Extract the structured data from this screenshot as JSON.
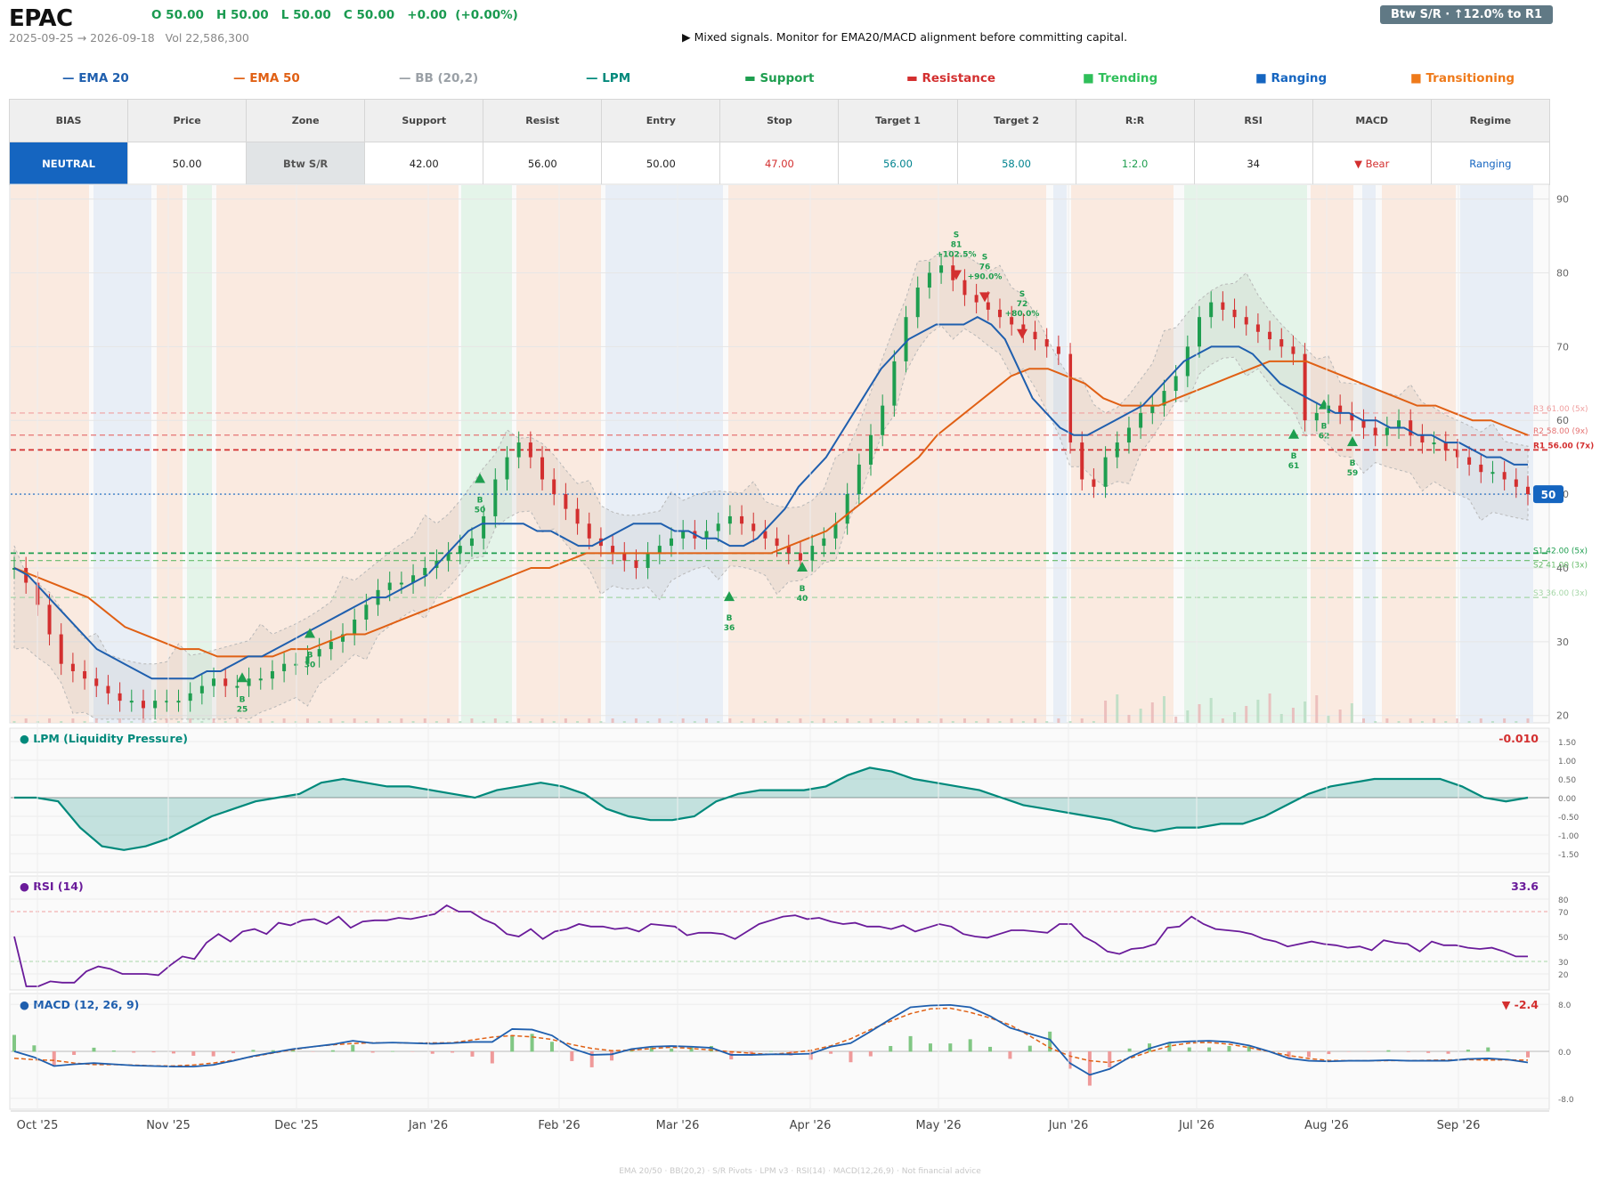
{
  "header": {
    "ticker": "EPAC",
    "ohlc": "O 50.00   H 50.00   L 50.00   C 50.00   +0.00  (+0.00%)",
    "range": "2025-09-25 → 2026-09-18   Vol 22,586,300",
    "signal": "▶  Mixed signals. Monitor for EMA20/MACD alignment before committing capital.",
    "badge": "Btw S/R  ·  ↑12.0% to R1"
  },
  "legend": [
    {
      "label": "— EMA 20",
      "color": "#1f5fae"
    },
    {
      "label": "— EMA 50",
      "color": "#e06014"
    },
    {
      "label": "— BB (20,2)",
      "color": "#9aa0a6"
    },
    {
      "label": "— LPM",
      "color": "#00897b"
    },
    {
      "label": "▬  Support",
      "color": "#1e9e4f"
    },
    {
      "label": "▬  Resistance",
      "color": "#d32f2f"
    },
    {
      "label": "■  Trending",
      "color": "#2fbf5a"
    },
    {
      "label": "■  Ranging",
      "color": "#1565c0"
    },
    {
      "label": "■  Transitioning",
      "color": "#ef7a1a"
    }
  ],
  "table": {
    "headers": [
      "BIAS",
      "Price",
      "Zone",
      "Support",
      "Resist",
      "Entry",
      "Stop",
      "Target 1",
      "Target 2",
      "R:R",
      "RSI",
      "MACD",
      "Regime"
    ],
    "values": [
      "NEUTRAL",
      "50.00",
      "Btw S/R",
      "42.00",
      "56.00",
      "50.00",
      "47.00",
      "56.00",
      "58.00",
      "1:2.0",
      "34",
      "▼ Bear",
      "Ranging"
    ],
    "colors": [
      "#ffffff",
      "#222222",
      "#555555",
      "#222222",
      "#222222",
      "#222222",
      "#d32f2f",
      "#00838f",
      "#00838f",
      "#1e9e4f",
      "#222222",
      "#d32f2f",
      "#1565c0"
    ]
  },
  "footer": "EMA 20/50  ·  BB(20,2)  ·  S/R Pivots  ·  LPM v3  ·  RSI(14)  ·  MACD(12,26,9)  ·  Not financial advice",
  "chart_data": {
    "type": "candlestick",
    "x_range": [
      "2025-09-25",
      "2026-09-18"
    ],
    "x_tick_labels": [
      "Oct '25",
      "Nov '25",
      "Dec '25",
      "Jan '26",
      "Feb '26",
      "Mar '26",
      "Apr '26",
      "May '26",
      "Jun '26",
      "Jul '26",
      "Aug '26",
      "Sep '26"
    ],
    "price_axis": {
      "ylim": [
        19,
        92
      ],
      "ticks": [
        20,
        30,
        40,
        50,
        60,
        70,
        80,
        90
      ]
    },
    "close": [
      40,
      38,
      35,
      31,
      27,
      26,
      25,
      24,
      23,
      22,
      22,
      21,
      22,
      22,
      22,
      23,
      24,
      25,
      24,
      24,
      25,
      25,
      26,
      27,
      27,
      28,
      29,
      30,
      31,
      33,
      35,
      37,
      38,
      38,
      39,
      40,
      41,
      42,
      43,
      44,
      47,
      52,
      55,
      57,
      55,
      52,
      50,
      48,
      46,
      44,
      43,
      42,
      41,
      40,
      42,
      43,
      44,
      45,
      44,
      45,
      46,
      47,
      46,
      45,
      44,
      43,
      42,
      41,
      43,
      44,
      46,
      50,
      54,
      58,
      62,
      68,
      74,
      78,
      80,
      81,
      79,
      77,
      76,
      75,
      74,
      73,
      72,
      71,
      70,
      69,
      57,
      52,
      51,
      55,
      57,
      59,
      61,
      62,
      64,
      66,
      70,
      74,
      76,
      75,
      74,
      73,
      72,
      71,
      70,
      69,
      60,
      61,
      62,
      61,
      60,
      59,
      58,
      59,
      60,
      58,
      57,
      57,
      56,
      55,
      54,
      53,
      53,
      52,
      51,
      50
    ],
    "ema20": [
      40,
      39,
      37,
      35,
      33,
      31,
      29,
      28,
      27,
      26,
      25,
      25,
      25,
      25,
      26,
      26,
      27,
      28,
      28,
      29,
      30,
      31,
      32,
      33,
      34,
      35,
      36,
      36,
      37,
      38,
      39,
      41,
      43,
      45,
      46,
      46,
      46,
      46,
      45,
      45,
      44,
      43,
      43,
      44,
      45,
      46,
      46,
      46,
      45,
      45,
      44,
      44,
      43,
      43,
      44,
      46,
      48,
      51,
      53,
      55,
      58,
      61,
      64,
      67,
      69,
      71,
      72,
      73,
      73,
      73,
      74,
      73,
      71,
      67,
      63,
      61,
      59,
      58,
      58,
      59,
      60,
      61,
      62,
      64,
      66,
      68,
      69,
      70,
      70,
      70,
      69,
      67,
      65,
      64,
      63,
      62,
      61,
      61,
      60,
      60,
      59,
      59,
      58,
      58,
      57,
      57,
      56,
      55,
      55,
      54,
      54
    ],
    "ema50": [
      40,
      39,
      38,
      37,
      36,
      34,
      32,
      31,
      30,
      29,
      29,
      28,
      28,
      28,
      28,
      29,
      29,
      30,
      31,
      31,
      32,
      33,
      34,
      35,
      36,
      37,
      38,
      39,
      40,
      40,
      41,
      42,
      42,
      42,
      42,
      42,
      42,
      42,
      42,
      42,
      42,
      42,
      43,
      44,
      45,
      47,
      49,
      51,
      53,
      55,
      58,
      60,
      62,
      64,
      66,
      67,
      67,
      66,
      65,
      63,
      62,
      62,
      62,
      63,
      64,
      65,
      66,
      67,
      68,
      68,
      68,
      67,
      66,
      65,
      64,
      63,
      62,
      62,
      61,
      60,
      60,
      59,
      58
    ]
  },
  "indicators": {
    "lpm": {
      "title": "● LPM (Liquidity Pressure)",
      "last": "-0.010",
      "ticks": [
        "1.50",
        "1.00",
        "0.50",
        "0.00",
        "-0.50",
        "-1.00",
        "-1.50"
      ]
    },
    "rsi": {
      "title": "● RSI (14)",
      "last": "33.6",
      "ticks": [
        "80",
        "70",
        "50",
        "30",
        "20"
      ]
    },
    "macd": {
      "title": "● MACD (12, 26, 9)",
      "last": "▼ -2.4",
      "ticks": [
        "8.0",
        "0.0",
        "-8.0"
      ]
    }
  },
  "levels": [
    {
      "label": "R3 61.00 (5x)",
      "value": 61,
      "color": "#f0a0a0"
    },
    {
      "label": "R2 58.00 (9x)",
      "value": 58,
      "color": "#e57373"
    },
    {
      "label": "R1 56.00 (7x)",
      "value": 56,
      "color": "#d32f2f"
    },
    {
      "label": "S1 42.00 (5x)",
      "value": 42,
      "color": "#1e9e4f"
    },
    {
      "label": "S2 41.00 (3x)",
      "value": 41,
      "color": "#66bb6a"
    },
    {
      "label": "S3 36.00 (3x)",
      "value": 36,
      "color": "#a5d6a7"
    }
  ],
  "price_marker": "50",
  "trade_markers": [
    {
      "text": "B\n30"
    },
    {
      "text": "B\n50"
    },
    {
      "text": "B\n36"
    },
    {
      "text": "B\n40"
    },
    {
      "text": "S\n81\n+102.5%"
    },
    {
      "text": "S\n76\n+90.0%"
    },
    {
      "text": "S\n72\n+80.0%"
    },
    {
      "text": "B\n61"
    },
    {
      "text": "B\n62"
    },
    {
      "text": "B\n59"
    },
    {
      "text": "B\n25"
    }
  ]
}
